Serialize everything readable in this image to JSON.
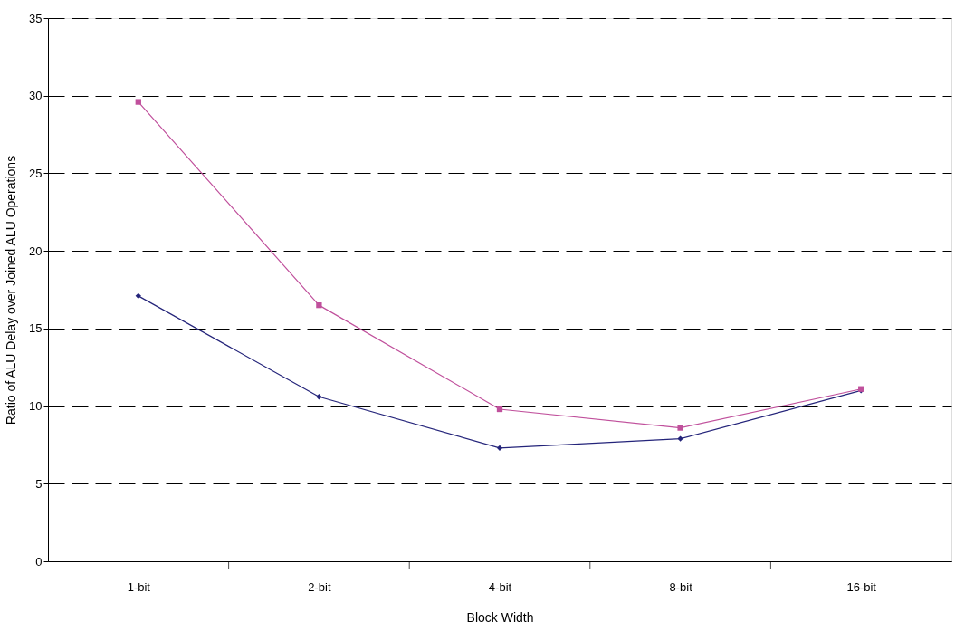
{
  "chart_data": {
    "type": "line",
    "xlabel": "Block Width",
    "ylabel": "Ratio of ALU Delay over Joined ALU Operations",
    "categories": [
      "1-bit",
      "2-bit",
      "4-bit",
      "8-bit",
      "16-bit"
    ],
    "series": [
      {
        "color": "#c0509c",
        "marker": "square",
        "values": [
          29.6,
          16.5,
          9.8,
          8.6,
          11.1
        ]
      },
      {
        "color": "#24247a",
        "marker": "diamond",
        "values": [
          17.1,
          10.6,
          7.3,
          7.9,
          11.0
        ]
      }
    ],
    "ylim": [
      0,
      35
    ],
    "yticks": [
      0,
      5,
      10,
      15,
      20,
      25,
      30,
      35
    ],
    "grid": "y",
    "line_style": "solid"
  }
}
